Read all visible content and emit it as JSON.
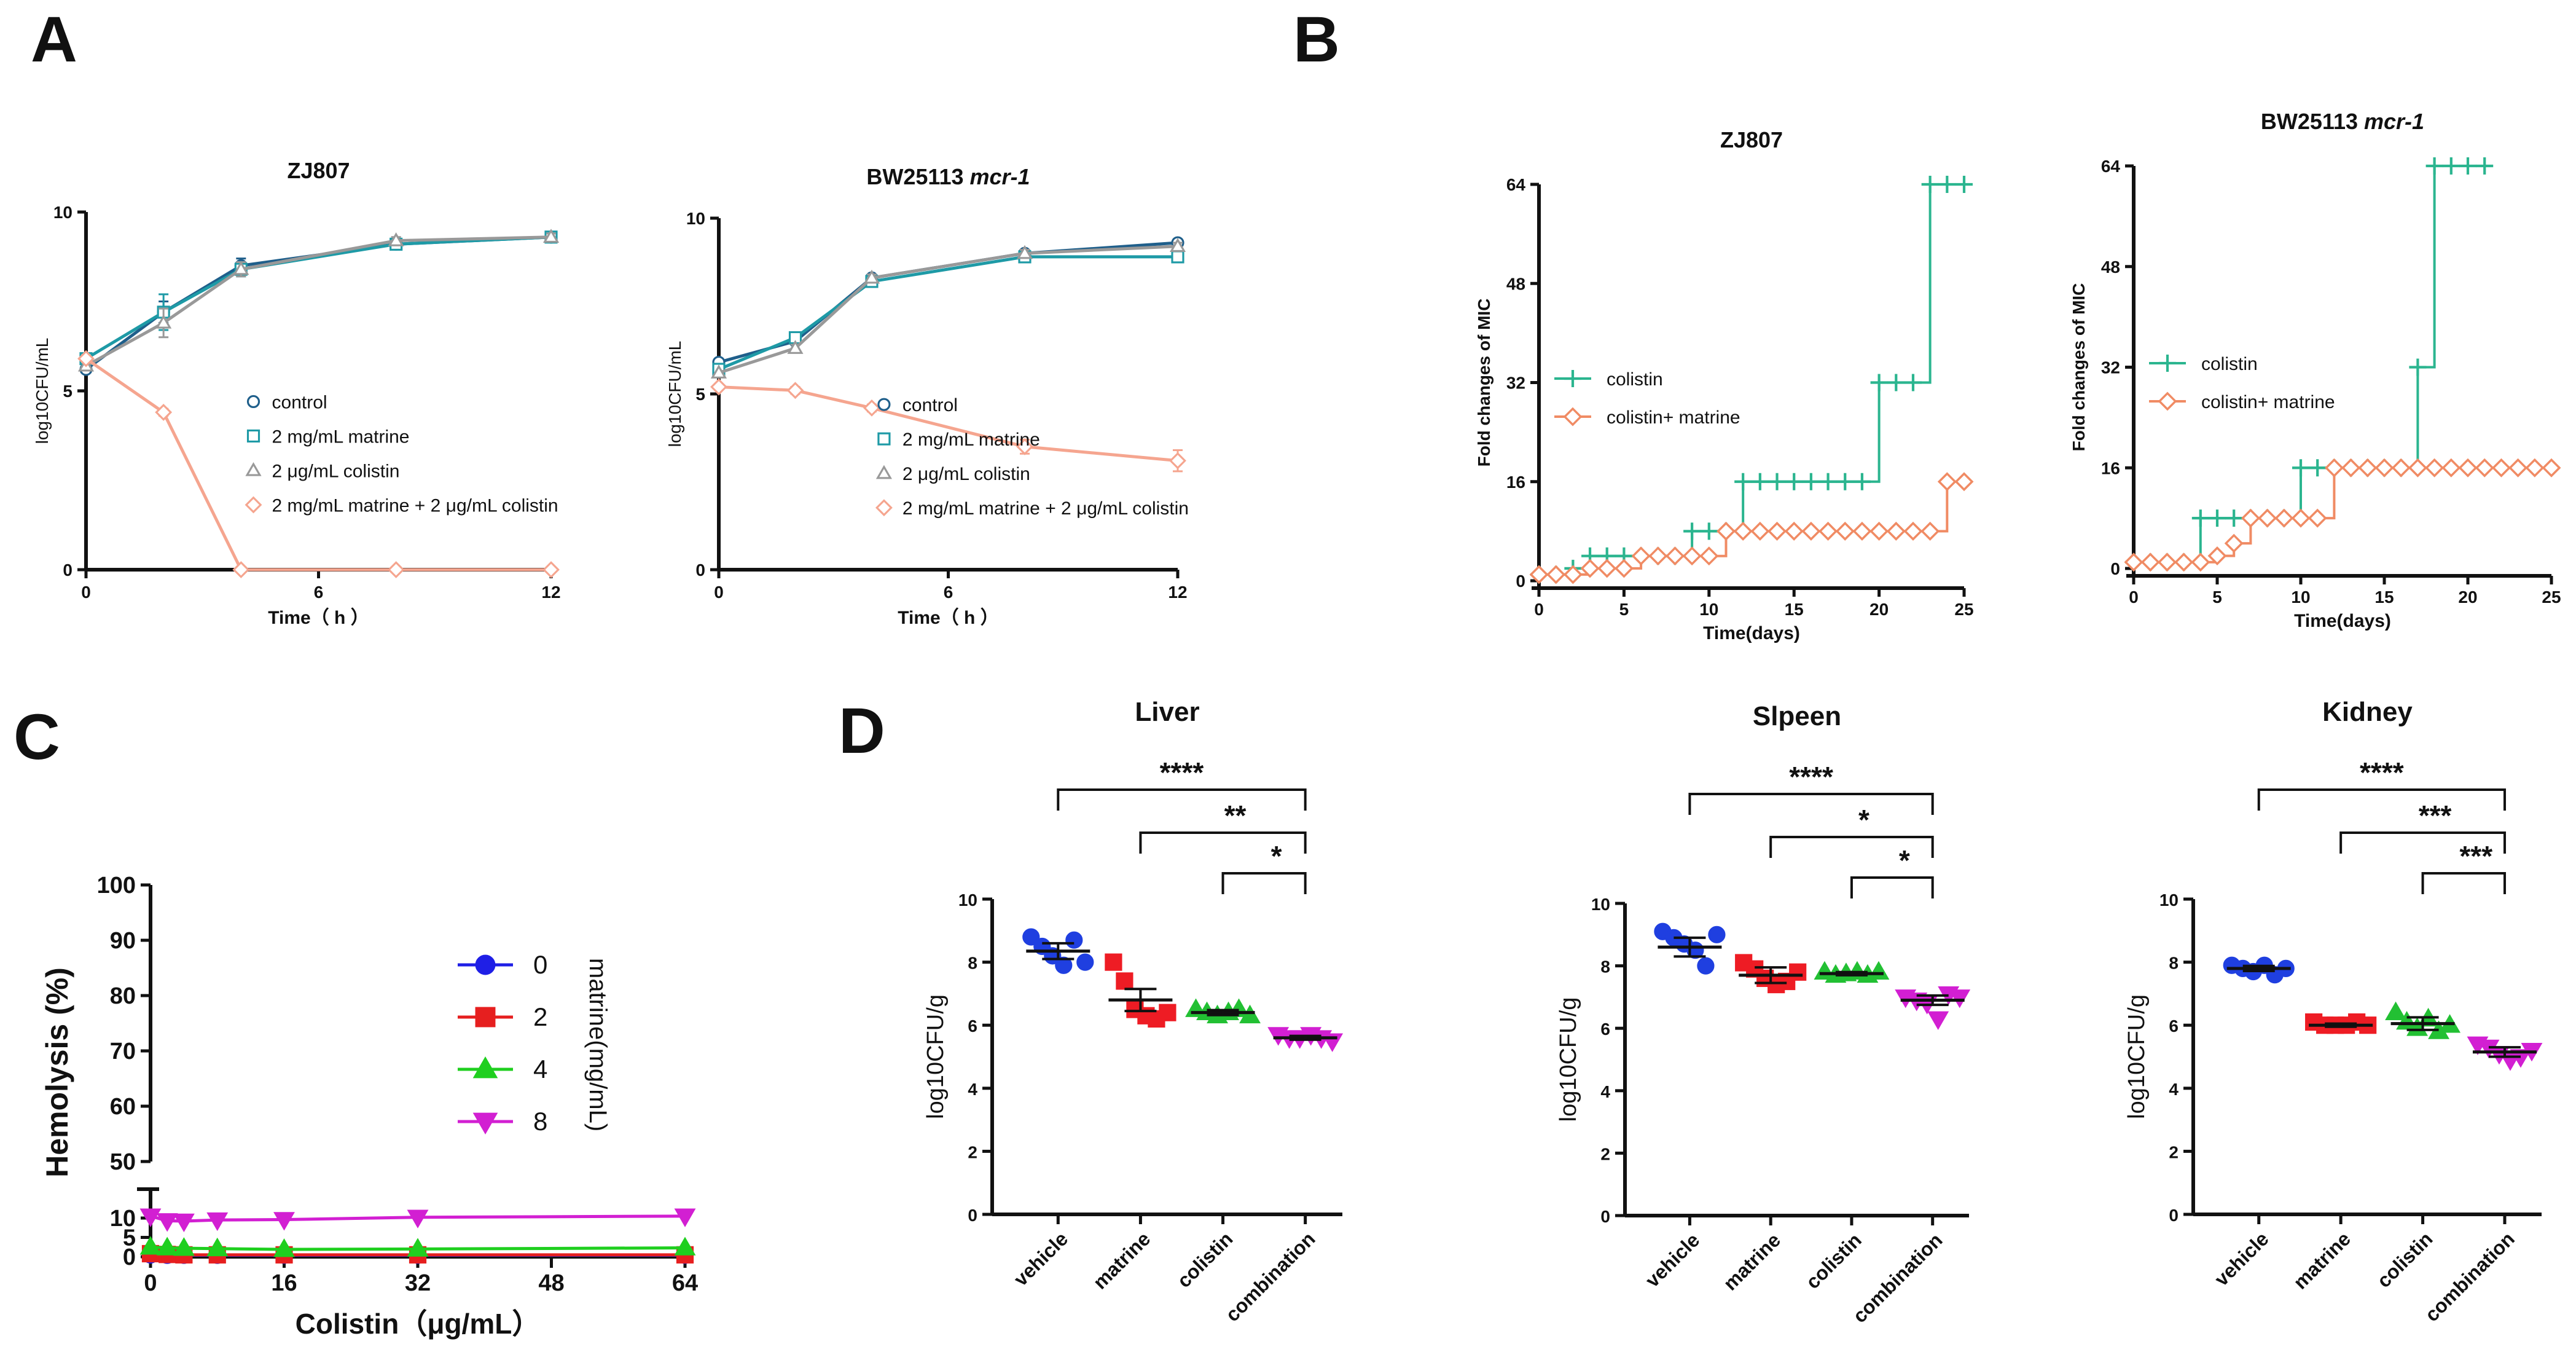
{
  "panel_letters": [
    "A",
    "B",
    "C",
    "D"
  ],
  "colors": {
    "control": "#1f5f8b",
    "matrine_a": "#1e9aa6",
    "colistin_a": "#999999",
    "combo_a": "#f5a58f",
    "colistin_b": "#2bb58f",
    "combo_b": "#f08b64",
    "c0": "#1f1fe6",
    "c2": "#e61f1f",
    "c4": "#1fcf1f",
    "c8": "#d21fd2",
    "vehicle": "#1f3fe0",
    "matrine_d": "#ee1c24",
    "colistin_d": "#22c033",
    "combination_d": "#d21fd2"
  },
  "chart_data": [
    {
      "id": "A1",
      "type": "line",
      "title": "ZJ807",
      "xlabel": "Time（ h ）",
      "ylabel": "log10CFU/mL",
      "xlim": [
        0,
        12
      ],
      "ylim": [
        0,
        10
      ],
      "xticks": [
        0,
        6,
        12
      ],
      "yticks": [
        0,
        5,
        10
      ],
      "legend": {
        "position": "lower-right"
      },
      "series": [
        {
          "name": "control",
          "marker": "circle",
          "color": "#1f5f8b",
          "x": [
            0,
            2,
            4,
            8,
            12
          ],
          "y": [
            5.6,
            7.2,
            8.5,
            9.1,
            9.3
          ],
          "err": [
            0,
            0.3,
            0.2,
            0.1,
            0.1
          ]
        },
        {
          "name": "2 mg/mL matrine",
          "marker": "square",
          "color": "#1e9aa6",
          "x": [
            0,
            2,
            4,
            8,
            12
          ],
          "y": [
            5.9,
            7.2,
            8.4,
            9.1,
            9.3
          ],
          "err": [
            0,
            0.5,
            0.2,
            0.1,
            0.1
          ]
        },
        {
          "name": "2 μg/mL colistin",
          "marker": "triangle",
          "color": "#999999",
          "x": [
            0,
            2,
            4,
            8,
            12
          ],
          "y": [
            5.7,
            6.9,
            8.4,
            9.2,
            9.3
          ],
          "err": [
            0,
            0.4,
            0.2,
            0.1,
            0.1
          ]
        },
        {
          "name": "2 mg/mL matrine + 2 μg/mL colistin",
          "marker": "diamond",
          "color": "#f5a58f",
          "x": [
            0,
            2,
            4,
            8,
            12
          ],
          "y": [
            5.9,
            4.4,
            0,
            0,
            0
          ],
          "err": [
            0,
            0.1,
            0,
            0,
            0
          ]
        }
      ]
    },
    {
      "id": "A2",
      "type": "line",
      "title": "BW25113 ",
      "title_italic": "mcr-1",
      "xlabel": "Time（ h ）",
      "ylabel": "log10CFU/mL",
      "xlim": [
        0,
        12
      ],
      "ylim": [
        0,
        10
      ],
      "xticks": [
        0,
        6,
        12
      ],
      "yticks": [
        0,
        5,
        10
      ],
      "legend": {
        "position": "lower-right"
      },
      "series": [
        {
          "name": "control",
          "marker": "circle",
          "color": "#1f5f8b",
          "x": [
            0,
            2,
            4,
            8,
            12
          ],
          "y": [
            5.9,
            6.5,
            8.3,
            9.0,
            9.3
          ],
          "err": [
            0,
            0.1,
            0.1,
            0.1,
            0.1
          ]
        },
        {
          "name": "2 mg/mL matrine",
          "marker": "square",
          "color": "#1e9aa6",
          "x": [
            0,
            2,
            4,
            8,
            12
          ],
          "y": [
            5.7,
            6.6,
            8.2,
            8.9,
            8.9
          ],
          "err": [
            0,
            0.1,
            0.1,
            0.1,
            0.1
          ]
        },
        {
          "name": "2 μg/mL colistin",
          "marker": "triangle",
          "color": "#999999",
          "x": [
            0,
            2,
            4,
            8,
            12
          ],
          "y": [
            5.6,
            6.3,
            8.3,
            9.0,
            9.2
          ],
          "err": [
            0,
            0.1,
            0.1,
            0.1,
            0.1
          ]
        },
        {
          "name": "2 mg/mL matrine + 2 μg/mL colistin",
          "marker": "diamond",
          "color": "#f5a58f",
          "x": [
            0,
            2,
            4,
            8,
            12
          ],
          "y": [
            5.2,
            5.1,
            4.6,
            3.5,
            3.1
          ],
          "err": [
            0,
            0.1,
            0.1,
            0.2,
            0.3
          ]
        }
      ]
    },
    {
      "id": "B1",
      "type": "line",
      "title": "ZJ807",
      "xlabel": "Time(days)",
      "ylabel": "Fold changes of MIC",
      "xlim": [
        0,
        25
      ],
      "ylim": [
        0,
        64
      ],
      "xticks": [
        0,
        5,
        10,
        15,
        20,
        25
      ],
      "yticks": [
        0,
        16,
        32,
        48,
        64
      ],
      "legend": {
        "position": "middle-left"
      },
      "series": [
        {
          "name": "colistin",
          "marker": "plus",
          "color": "#2bb58f",
          "x": [
            0,
            1,
            2,
            3,
            4,
            5,
            6,
            7,
            8,
            9,
            10,
            11,
            12,
            13,
            14,
            15,
            16,
            17,
            18,
            19,
            20,
            21,
            22,
            23,
            24,
            25
          ],
          "y": [
            1,
            1,
            2,
            4,
            4,
            4,
            4,
            4,
            4,
            8,
            8,
            8,
            16,
            16,
            16,
            16,
            16,
            16,
            16,
            16,
            32,
            32,
            32,
            64,
            64,
            64
          ]
        },
        {
          "name": "colistin+ matrine",
          "marker": "diamond",
          "color": "#f08b64",
          "x": [
            0,
            1,
            2,
            3,
            4,
            5,
            6,
            7,
            8,
            9,
            10,
            11,
            12,
            13,
            14,
            15,
            16,
            17,
            18,
            19,
            20,
            21,
            22,
            23,
            24,
            25
          ],
          "y": [
            1,
            1,
            1,
            2,
            2,
            2,
            4,
            4,
            4,
            4,
            4,
            8,
            8,
            8,
            8,
            8,
            8,
            8,
            8,
            8,
            8,
            8,
            8,
            8,
            16,
            16
          ]
        }
      ]
    },
    {
      "id": "B2",
      "type": "line",
      "title": "BW25113 ",
      "title_italic": "mcr-1",
      "xlabel": "Time(days)",
      "ylabel": "Fold changes of MIC",
      "xlim": [
        0,
        25
      ],
      "ylim": [
        0,
        64
      ],
      "xticks": [
        0,
        5,
        10,
        15,
        20,
        25
      ],
      "yticks": [
        0,
        16,
        32,
        48,
        64
      ],
      "legend": {
        "position": "middle-left"
      },
      "series": [
        {
          "name": "colistin",
          "marker": "plus",
          "color": "#2bb58f",
          "x": [
            0,
            1,
            2,
            3,
            4,
            5,
            6,
            7,
            8,
            9,
            10,
            11,
            12,
            13,
            14,
            15,
            16,
            17,
            18,
            19,
            20,
            21
          ],
          "y": [
            1,
            1,
            1,
            1,
            8,
            8,
            8,
            8,
            8,
            8,
            16,
            16,
            16,
            16,
            16,
            16,
            16,
            32,
            64,
            64,
            64,
            64
          ]
        },
        {
          "name": "colistin+ matrine",
          "marker": "diamond",
          "color": "#f08b64",
          "x": [
            0,
            1,
            2,
            3,
            4,
            5,
            6,
            7,
            8,
            9,
            10,
            11,
            12,
            13,
            14,
            15,
            16,
            17,
            18,
            19,
            20,
            21,
            22,
            23,
            24,
            25
          ],
          "y": [
            1,
            1,
            1,
            1,
            1,
            2,
            4,
            8,
            8,
            8,
            8,
            8,
            16,
            16,
            16,
            16,
            16,
            16,
            16,
            16,
            16,
            16,
            16,
            16,
            16,
            16
          ]
        }
      ]
    },
    {
      "id": "C",
      "type": "line",
      "title": "",
      "xlabel": "Colistin（μg/mL）",
      "ylabel": "Hemolysis (%)",
      "xlim": [
        0,
        64
      ],
      "xticks": [
        0,
        16,
        32,
        48,
        64
      ],
      "yticks": [
        0,
        5,
        10,
        50,
        60,
        70,
        80,
        90,
        100
      ],
      "axis_break": [
        12,
        50
      ],
      "legend_title": "matrine(mg/mL)",
      "legend": {
        "position": "right"
      },
      "series": [
        {
          "name": "0",
          "marker": "circle",
          "color": "#1f1fe6",
          "x": [
            0,
            2,
            4,
            8,
            16,
            32,
            64
          ],
          "y": [
            0.5,
            0.4,
            0.4,
            0.4,
            0.4,
            0.4,
            0.4
          ]
        },
        {
          "name": "2",
          "marker": "square",
          "color": "#e61f1f",
          "x": [
            0,
            2,
            4,
            8,
            16,
            32,
            64
          ],
          "y": [
            0.8,
            0.6,
            0.5,
            0.5,
            0.5,
            0.5,
            0.5
          ]
        },
        {
          "name": "4",
          "marker": "triangle",
          "color": "#1fcf1f",
          "x": [
            0,
            2,
            4,
            8,
            16,
            32,
            64
          ],
          "y": [
            2.5,
            2.3,
            2.2,
            2.1,
            1.9,
            2.0,
            2.3
          ]
        },
        {
          "name": "8",
          "marker": "triangle-down",
          "color": "#d21fd2",
          "x": [
            0,
            2,
            4,
            8,
            16,
            32,
            64
          ],
          "y": [
            10.5,
            9.3,
            9.2,
            9.5,
            9.6,
            10.2,
            10.5
          ]
        }
      ]
    },
    {
      "id": "D1",
      "type": "scatter",
      "title": "Liver",
      "ylabel": "log10CFU/g",
      "ylim": [
        0,
        10
      ],
      "yticks": [
        0,
        2,
        4,
        6,
        8,
        10
      ],
      "categories": [
        "vehicle",
        "matrine",
        "colistin",
        "combination"
      ],
      "means": [
        8.35,
        6.8,
        6.4,
        5.6
      ],
      "sem": [
        0.25,
        0.35,
        0.08,
        0.06
      ],
      "points": [
        [
          8.8,
          8.5,
          8.2,
          7.9,
          8.7,
          8.0
        ],
        [
          8.0,
          7.4,
          6.5,
          6.3,
          6.2,
          6.4
        ],
        [
          6.5,
          6.4,
          6.3,
          6.4,
          6.5,
          6.3
        ],
        [
          5.7,
          5.6,
          5.6,
          5.7,
          5.6,
          5.5
        ]
      ],
      "brackets": [
        {
          "from": 0,
          "to": 3,
          "label": "****"
        },
        {
          "from": 1,
          "to": 3,
          "label": "**"
        },
        {
          "from": 2,
          "to": 3,
          "label": "*"
        }
      ]
    },
    {
      "id": "D2",
      "type": "scatter",
      "title": "Slpeen",
      "ylabel": "log10CFU/g",
      "ylim": [
        0,
        10
      ],
      "yticks": [
        0,
        2,
        4,
        6,
        8,
        10
      ],
      "categories": [
        "vehicle",
        "matrine",
        "colistin",
        "combination"
      ],
      "means": [
        8.6,
        7.7,
        7.75,
        6.9
      ],
      "sem": [
        0.3,
        0.25,
        0.05,
        0.15
      ],
      "points": [
        [
          9.1,
          8.9,
          8.7,
          8.5,
          8.0,
          9.0
        ],
        [
          8.1,
          7.9,
          7.6,
          7.4,
          7.5,
          7.8
        ],
        [
          7.8,
          7.7,
          7.75,
          7.8,
          7.7,
          7.8
        ],
        [
          7.0,
          6.9,
          6.8,
          6.3,
          7.1,
          7.0
        ]
      ],
      "brackets": [
        {
          "from": 0,
          "to": 3,
          "label": "****"
        },
        {
          "from": 1,
          "to": 3,
          "label": "*"
        },
        {
          "from": 2,
          "to": 3,
          "label": "*"
        }
      ]
    },
    {
      "id": "D3",
      "type": "scatter",
      "title": "Kidney",
      "ylabel": "log10CFU/g",
      "ylim": [
        0,
        10
      ],
      "yticks": [
        0,
        2,
        4,
        6,
        8,
        10
      ],
      "categories": [
        "vehicle",
        "matrine",
        "colistin",
        "combination"
      ],
      "means": [
        7.8,
        6.0,
        6.05,
        5.15
      ],
      "sem": [
        0.08,
        0.05,
        0.2,
        0.15
      ],
      "points": [
        [
          7.9,
          7.8,
          7.7,
          7.9,
          7.6,
          7.8
        ],
        [
          6.1,
          6.0,
          6.0,
          6.0,
          6.1,
          6.0
        ],
        [
          6.4,
          6.1,
          5.9,
          6.2,
          5.8,
          6.0
        ],
        [
          5.4,
          5.3,
          5.1,
          4.9,
          5.0,
          5.2
        ]
      ],
      "brackets": [
        {
          "from": 0,
          "to": 3,
          "label": "****"
        },
        {
          "from": 1,
          "to": 3,
          "label": "***"
        },
        {
          "from": 2,
          "to": 3,
          "label": "***"
        }
      ]
    }
  ]
}
